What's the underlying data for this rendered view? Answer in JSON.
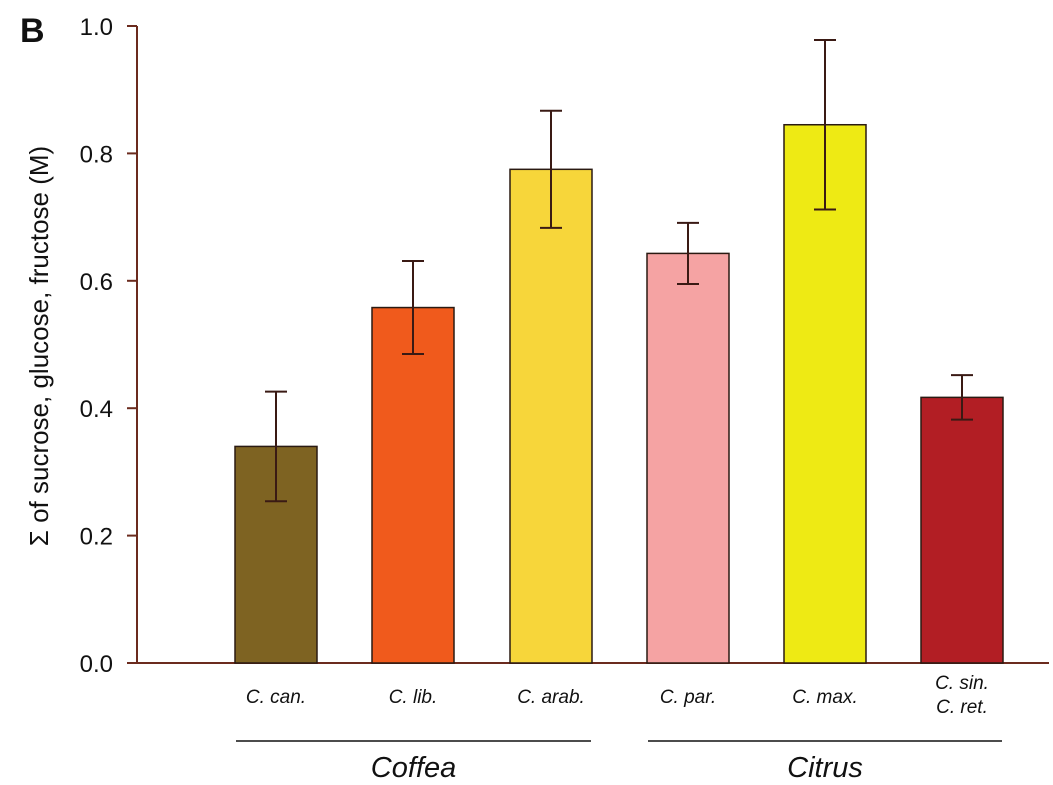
{
  "panel_label": "B",
  "chart_data": {
    "type": "bar",
    "title": "",
    "xlabel": "",
    "ylabel": "Σ of sucrose, glucose, fructose (M)",
    "ylim": [
      0,
      1.0
    ],
    "yticks": [
      "0.0",
      "0.2",
      "0.4",
      "0.6",
      "0.8",
      "1.0"
    ],
    "categories": [
      [
        "C. can."
      ],
      [
        "C. lib."
      ],
      [
        "C. arab."
      ],
      [
        "C. par."
      ],
      [
        "C. max."
      ],
      [
        "C. sin.",
        "C. ret."
      ]
    ],
    "values": [
      0.34,
      0.558,
      0.775,
      0.643,
      0.845,
      0.417
    ],
    "errors": [
      0.086,
      0.073,
      0.092,
      0.048,
      0.133,
      0.035
    ],
    "colors": [
      "#7e6322",
      "#f05a1c",
      "#f7d63a",
      "#f5a3a3",
      "#eeea14",
      "#b21e24"
    ],
    "groups": [
      {
        "label": "Coffea",
        "from": 0,
        "to": 2
      },
      {
        "label": "Citrus",
        "from": 3,
        "to": 5
      }
    ]
  }
}
